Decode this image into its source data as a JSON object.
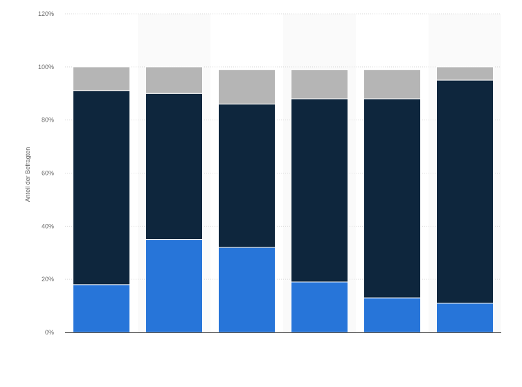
{
  "chart_data": {
    "type": "bar",
    "stacked": true,
    "title": "",
    "xlabel": "",
    "ylabel": "Anteil der Befragten",
    "ylim": [
      0,
      120
    ],
    "yticks": [
      0,
      20,
      40,
      60,
      80,
      100,
      120
    ],
    "ytick_labels": [
      "0%",
      "20%",
      "40%",
      "60%",
      "80%",
      "100%",
      "120%"
    ],
    "grid": true,
    "legend": "none",
    "categories": [
      "",
      "",
      "",
      "",
      "",
      ""
    ],
    "series": [
      {
        "color": "#2775d9",
        "values": [
          18,
          35,
          32,
          19,
          13,
          11
        ]
      },
      {
        "color": "#0e263d",
        "values": [
          73,
          55,
          54,
          69,
          75,
          84
        ]
      },
      {
        "color": "#b5b5b5",
        "values": [
          9,
          10,
          13,
          11,
          11,
          5
        ]
      }
    ]
  }
}
